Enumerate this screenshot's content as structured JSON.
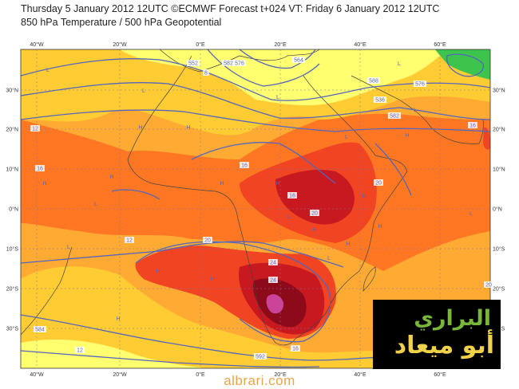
{
  "header": {
    "line1": "Thursday 5 January 2012 12UTC ©ECMWF Forecast t+024 VT: Friday 6 January 2012 12UTC",
    "line2": "850 hPa Temperature / 500 hPa Geopotential"
  },
  "map": {
    "lon_labels": [
      "40°W",
      "20°W",
      "0°E",
      "20°E",
      "40°E",
      "60°E"
    ],
    "lat_labels": [
      "30°N",
      "20°N",
      "10°N",
      "0°N",
      "10°S",
      "20°S",
      "30°S"
    ],
    "contour_labels": [
      "8",
      "12",
      "16",
      "12",
      "16",
      "16",
      "20",
      "20",
      "24",
      "20",
      "16",
      "12",
      "16",
      "20",
      "24",
      "588",
      "576",
      "584",
      "592",
      "582",
      "582",
      "576",
      "552",
      "564",
      "536"
    ],
    "high_labels": [
      "H",
      "H",
      "H",
      "H",
      "H",
      "H",
      "H",
      "H",
      "H",
      "H",
      "H",
      "H",
      "H",
      "H"
    ],
    "low_labels": [
      "L",
      "L",
      "L",
      "L",
      "L",
      "L",
      "L",
      "L",
      "L",
      "L",
      "L"
    ],
    "colors": {
      "cold": "#3cc44c",
      "cool": "#ffff70",
      "mild": "#ffcc33",
      "warm": "#ffaa33",
      "hot": "#ff7722",
      "hotter": "#f04422",
      "very_hot": "#c81820",
      "extreme": "#8c0a1a",
      "peak": "#cc4499",
      "contour": "#5566bb",
      "land": "#444444"
    }
  },
  "watermark": "albrari.com",
  "logo": {
    "line1": "البراري",
    "line2": "أبو ميعاد"
  }
}
